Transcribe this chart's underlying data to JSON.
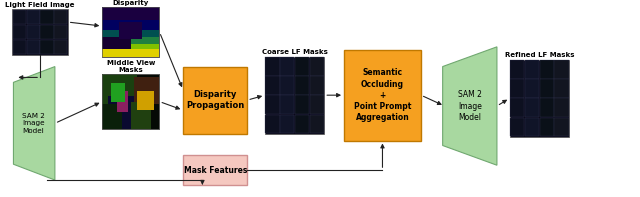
{
  "bg_color": "#ffffff",
  "figure_bg": "#ffffff",
  "orange_color": "#F5A020",
  "orange_edge": "#C07800",
  "green_color": "#A8D8A0",
  "green_edge": "#70A870",
  "pink_color": "#F5C8C0",
  "pink_edge": "#D09090",
  "dark_gray": "#222222",
  "arrow_color": "#222222",
  "lf_image_label": "Light Field Image",
  "disparity_label": "Disparity",
  "middle_view_label": "Middle View\nMasks",
  "sam2_left_label": "SAM 2\nImage\nModel",
  "disparity_prop_label": "Disparity\nPropagation",
  "coarse_lf_label": "Coarse LF Masks",
  "semantic_label": "Semantic\nOccluding\n+\nPoint Prompt\nAggregation",
  "sam2_right_label": "SAM 2\nImage\nModel",
  "refined_lf_label": "Refined LF Masks",
  "mask_features_label": "Mask Features",
  "lf_grid_rows": 3,
  "lf_grid_cols": 4,
  "clf_grid_rows": 4,
  "clf_grid_cols": 4,
  "rlf_grid_rows": 4,
  "rlf_grid_cols": 4
}
